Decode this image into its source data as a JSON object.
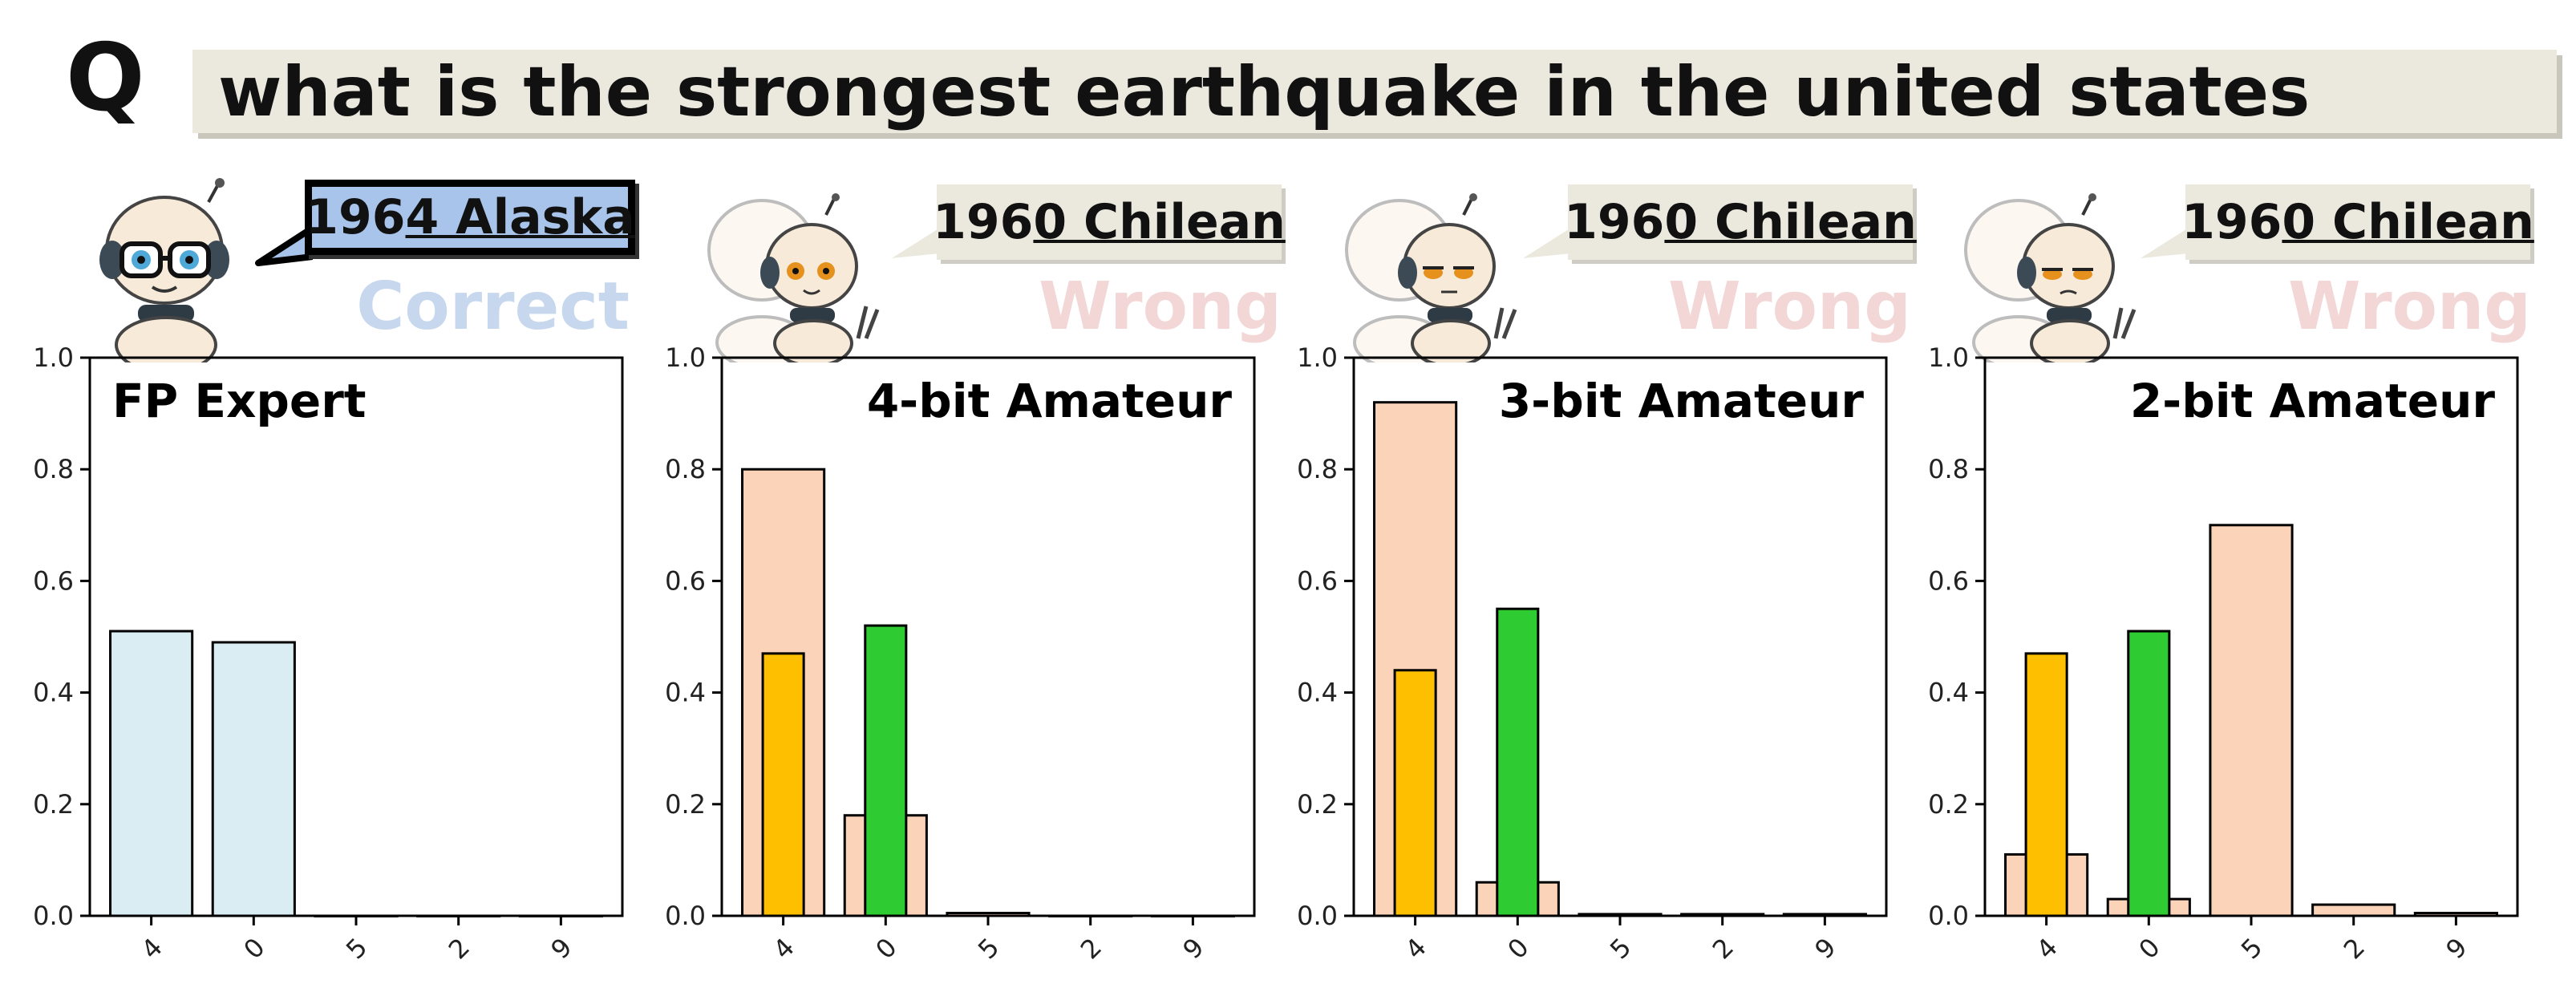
{
  "question": {
    "label": "Q",
    "text": "what is the strongest earthquake in the united states"
  },
  "panels": [
    {
      "answer_prefix": "196",
      "answer_underlined": "4 Alaska",
      "verdict": "Correct",
      "verdict_kind": "correct"
    },
    {
      "answer_prefix": "196",
      "answer_underlined": "0 Chilean",
      "verdict": "Wrong",
      "verdict_kind": "wrong"
    },
    {
      "answer_prefix": "196",
      "answer_underlined": "0 Chilean",
      "verdict": "Wrong",
      "verdict_kind": "wrong"
    },
    {
      "answer_prefix": "196",
      "answer_underlined": "0 Chilean",
      "verdict": "Wrong",
      "verdict_kind": "wrong"
    }
  ],
  "colors": {
    "expert": "#d9edf3",
    "amateur": "#fbd3b8",
    "orange": "#fdbf00",
    "green": "#2ecb33",
    "edge": "#000000"
  },
  "chart_data": [
    {
      "type": "bar",
      "title": "FP Expert",
      "categories": [
        "4",
        "0",
        "5",
        "2",
        "9"
      ],
      "ylim": [
        0,
        1.0
      ],
      "yticks": [
        "0.0",
        "0.2",
        "0.4",
        "0.6",
        "0.8",
        "1.0"
      ],
      "series": [
        {
          "values": [
            0.51,
            0.49,
            0.0,
            0.0,
            0.0
          ],
          "color": "#d9edf3",
          "style": "wide"
        }
      ]
    },
    {
      "type": "bar",
      "title": "4-bit Amateur",
      "categories": [
        "4",
        "0",
        "5",
        "2",
        "9"
      ],
      "ylim": [
        0,
        1.0
      ],
      "yticks": [
        "0.0",
        "0.2",
        "0.4",
        "0.6",
        "0.8",
        "1.0"
      ],
      "series": [
        {
          "values": [
            0.8,
            0.18,
            0.005,
            0.0,
            0.0
          ],
          "color": "#fbd3b8",
          "style": "wide"
        },
        {
          "values": [
            0.47,
            0.52,
            null,
            null,
            null
          ],
          "color_by_category": [
            "#fdbf00",
            "#2ecb33"
          ],
          "style": "narrow"
        }
      ]
    },
    {
      "type": "bar",
      "title": "3-bit Amateur",
      "categories": [
        "4",
        "0",
        "5",
        "2",
        "9"
      ],
      "ylim": [
        0,
        1.0
      ],
      "yticks": [
        "0.0",
        "0.2",
        "0.4",
        "0.6",
        "0.8",
        "1.0"
      ],
      "series": [
        {
          "values": [
            0.92,
            0.06,
            0.003,
            0.003,
            0.003
          ],
          "color": "#fbd3b8",
          "style": "wide"
        },
        {
          "values": [
            0.44,
            0.55,
            null,
            null,
            null
          ],
          "color_by_category": [
            "#fdbf00",
            "#2ecb33"
          ],
          "style": "narrow"
        }
      ]
    },
    {
      "type": "bar",
      "title": "2-bit Amateur",
      "categories": [
        "4",
        "0",
        "5",
        "2",
        "9"
      ],
      "ylim": [
        0,
        1.0
      ],
      "yticks": [
        "0.0",
        "0.2",
        "0.4",
        "0.6",
        "0.8",
        "1.0"
      ],
      "series": [
        {
          "values": [
            0.11,
            0.03,
            0.7,
            0.02,
            0.005
          ],
          "color": "#fbd3b8",
          "style": "wide"
        },
        {
          "values": [
            0.47,
            0.51,
            null,
            null,
            null
          ],
          "color_by_category": [
            "#fdbf00",
            "#2ecb33"
          ],
          "style": "narrow"
        }
      ]
    }
  ]
}
